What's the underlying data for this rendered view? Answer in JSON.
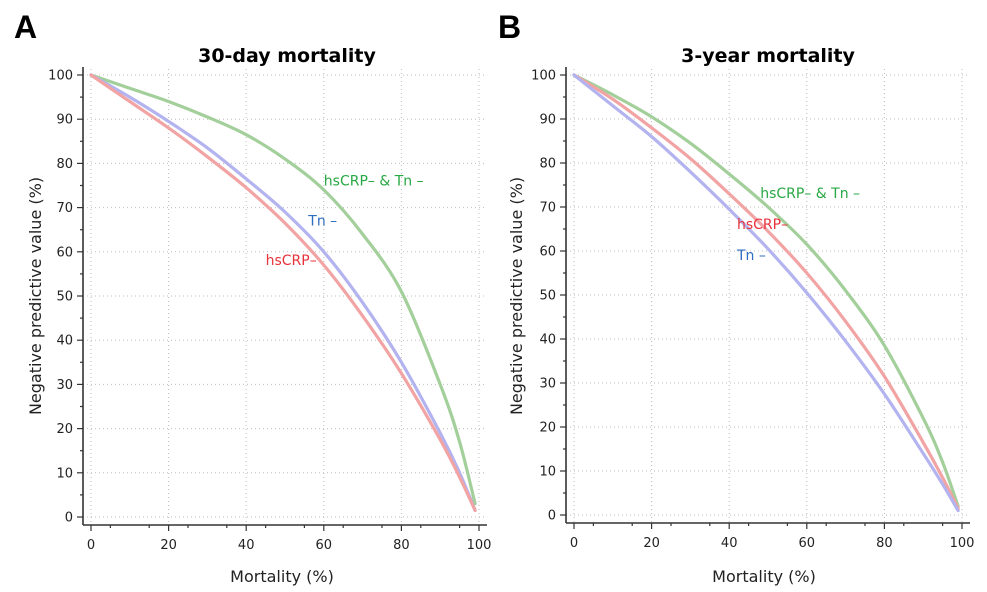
{
  "chart_data": [
    {
      "type": "line",
      "panel": "A",
      "title": "30-day mortality",
      "xlabel": "Mortality (%)",
      "ylabel": "Negative predictive value (%)",
      "xlim": [
        0,
        100
      ],
      "ylim": [
        0,
        100
      ],
      "xticks": [
        0,
        20,
        40,
        60,
        80,
        100
      ],
      "yticks": [
        0,
        10,
        20,
        30,
        40,
        50,
        60,
        70,
        80,
        90,
        100
      ],
      "grid": true,
      "series": [
        {
          "name": "hsCRP– & Tn –",
          "color": "#a3cf9b",
          "label_color": "#27a844",
          "label_anchor": [
            60,
            75
          ],
          "x": [
            0,
            10,
            20,
            30,
            40,
            50,
            60,
            70,
            80,
            90,
            95,
            99
          ],
          "y": [
            100,
            97,
            94,
            90.5,
            86.5,
            81,
            74,
            64,
            51,
            30,
            17,
            3
          ]
        },
        {
          "name": "Tn –",
          "color": "#b3b3f0",
          "label_color": "#2f6fbf",
          "label_anchor": [
            56,
            66
          ],
          "x": [
            0,
            10,
            20,
            30,
            40,
            50,
            60,
            70,
            80,
            90,
            95,
            99
          ],
          "y": [
            100,
            95,
            89.5,
            83.5,
            76.5,
            69,
            60,
            48.5,
            35,
            19,
            10,
            1.5
          ]
        },
        {
          "name": "hsCRP–",
          "color": "#f2a3a3",
          "label_color": "#e8323a",
          "label_anchor": [
            45,
            57
          ],
          "x": [
            0,
            10,
            20,
            30,
            40,
            50,
            60,
            70,
            80,
            90,
            95,
            99
          ],
          "y": [
            100,
            94,
            88,
            81.5,
            74.5,
            66.5,
            57,
            45.5,
            32.5,
            17.5,
            9,
            1.5
          ]
        }
      ]
    },
    {
      "type": "line",
      "panel": "B",
      "title": "3-year mortality",
      "xlabel": "Mortality (%)",
      "ylabel": "Negative predictive value (%)",
      "xlim": [
        0,
        100
      ],
      "ylim": [
        0,
        100
      ],
      "xticks": [
        0,
        20,
        40,
        60,
        80,
        100
      ],
      "yticks": [
        0,
        10,
        20,
        30,
        40,
        50,
        60,
        70,
        80,
        90,
        100
      ],
      "grid": true,
      "series": [
        {
          "name": "hsCRP– & Tn –",
          "color": "#a3cf9b",
          "label_color": "#27a844",
          "label_anchor": [
            48,
            72
          ],
          "x": [
            0,
            10,
            20,
            30,
            40,
            50,
            60,
            70,
            80,
            90,
            95,
            99
          ],
          "y": [
            100,
            95.5,
            90.5,
            84.5,
            77.5,
            70,
            61.5,
            51,
            38.5,
            22,
            12,
            2
          ]
        },
        {
          "name": "hsCRP–",
          "color": "#f2a3a3",
          "label_color": "#e8323a",
          "label_anchor": [
            42,
            65
          ],
          "x": [
            0,
            10,
            20,
            30,
            40,
            50,
            60,
            70,
            80,
            90,
            95,
            99
          ],
          "y": [
            100,
            94.5,
            88,
            81,
            73,
            64.5,
            55,
            44,
            31.5,
            16.5,
            8.5,
            1.5
          ]
        },
        {
          "name": "Tn –",
          "color": "#b3b3f0",
          "label_color": "#2f6fbf",
          "label_anchor": [
            42,
            58
          ],
          "x": [
            0,
            10,
            20,
            30,
            40,
            50,
            60,
            70,
            80,
            90,
            95,
            99
          ],
          "y": [
            100,
            93,
            86,
            78,
            69.5,
            60.5,
            50.5,
            39.5,
            27.5,
            14,
            7,
            1
          ]
        }
      ]
    }
  ]
}
